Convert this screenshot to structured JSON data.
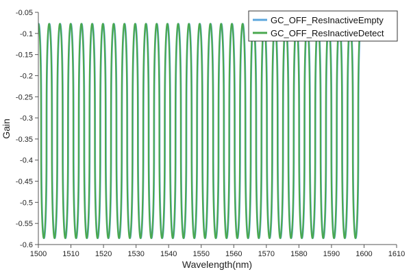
{
  "chart_data": {
    "type": "line",
    "title": "",
    "xlabel": "Wavelength(nm)",
    "ylabel": "Gain",
    "xlim": [
      1500,
      1610
    ],
    "ylim": [
      -0.6,
      -0.05
    ],
    "xticks": [
      1500,
      1510,
      1520,
      1530,
      1540,
      1550,
      1560,
      1570,
      1580,
      1590,
      1600,
      1610
    ],
    "yticks": [
      -0.05,
      -0.1,
      -0.15,
      -0.2,
      -0.25,
      -0.3,
      -0.35,
      -0.4,
      -0.45,
      -0.5,
      -0.55,
      -0.6
    ],
    "grid": false,
    "legend_position": "top-right",
    "x_range_of_data": [
      1500,
      1599
    ],
    "oscillation": {
      "period_nm": 3.3,
      "peak_gain": -0.077,
      "trough_gain": -0.585
    },
    "series": [
      {
        "name": "GC_OFF_ResInactiveEmpty",
        "color": "#5aa6dc",
        "phase_offset_nm": 0.12
      },
      {
        "name": "GC_OFF_ResInactiveDetect",
        "color": "#4aa84f",
        "phase_offset_nm": 0.0
      }
    ]
  }
}
